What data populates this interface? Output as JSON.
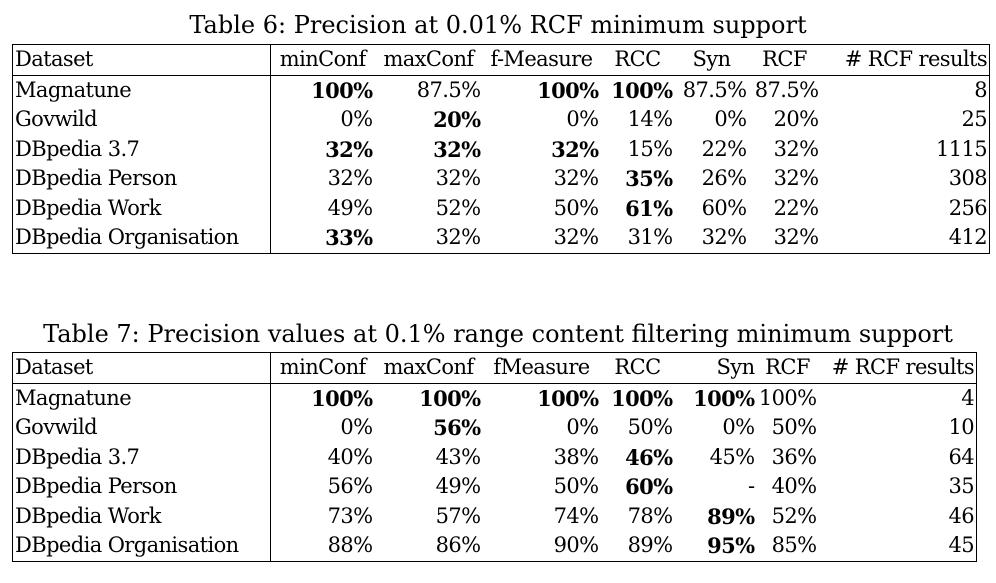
{
  "table6": {
    "caption": "Table 6: Precision at 0.01% RCF minimum support",
    "headers": [
      "Dataset",
      "minConf",
      "maxConf",
      "f-Measure",
      "RCC",
      "Syn",
      "RCF",
      "# RCF results"
    ],
    "rows": [
      {
        "cells": [
          "Magnatune",
          "100%",
          "87.5%",
          "100%",
          "100%",
          "87.5%",
          "87.5%",
          "8"
        ],
        "bold": [
          1,
          3,
          4
        ]
      },
      {
        "cells": [
          "Govwild",
          "0%",
          "20%",
          "0%",
          "14%",
          "0%",
          "20%",
          "25"
        ],
        "bold": [
          2
        ]
      },
      {
        "cells": [
          "DBpedia 3.7",
          "32%",
          "32%",
          "32%",
          "15%",
          "22%",
          "32%",
          "1115"
        ],
        "bold": [
          1,
          2,
          3
        ]
      },
      {
        "cells": [
          "DBpedia Person",
          "32%",
          "32%",
          "32%",
          "35%",
          "26%",
          "32%",
          "308"
        ],
        "bold": [
          4
        ]
      },
      {
        "cells": [
          "DBpedia Work",
          "49%",
          "52%",
          "50%",
          "61%",
          "60%",
          "22%",
          "256"
        ],
        "bold": [
          4
        ]
      },
      {
        "cells": [
          "DBpedia Organisation",
          "33%",
          "32%",
          "32%",
          "31%",
          "32%",
          "32%",
          "412"
        ],
        "bold": [
          1
        ]
      }
    ]
  },
  "table7": {
    "caption": "Table 7: Precision values at 0.1% range content filtering minimum support",
    "headers": [
      "Dataset",
      "minConf",
      "maxConf",
      "fMeasure",
      "RCC",
      "Syn",
      "RCF",
      "# RCF results"
    ],
    "rows": [
      {
        "cells": [
          "Magnatune",
          "100%",
          "100%",
          "100%",
          "100%",
          "100%",
          "100%",
          "4"
        ],
        "bold": [
          1,
          2,
          3,
          4,
          5
        ]
      },
      {
        "cells": [
          "Govwild",
          "0%",
          "56%",
          "0%",
          "50%",
          "0%",
          "50%",
          "10"
        ],
        "bold": [
          2
        ]
      },
      {
        "cells": [
          "DBpedia 3.7",
          "40%",
          "43%",
          "38%",
          "46%",
          "45%",
          "36%",
          "64"
        ],
        "bold": [
          4
        ]
      },
      {
        "cells": [
          "DBpedia Person",
          "56%",
          "49%",
          "50%",
          "60%",
          "-",
          "40%",
          "35"
        ],
        "bold": [
          4
        ]
      },
      {
        "cells": [
          "DBpedia Work",
          "73%",
          "57%",
          "74%",
          "78%",
          "89%",
          "52%",
          "46"
        ],
        "bold": [
          5
        ]
      },
      {
        "cells": [
          "DBpedia Organisation",
          "88%",
          "86%",
          "90%",
          "89%",
          "95%",
          "85%",
          "45"
        ],
        "bold": [
          5
        ]
      }
    ]
  }
}
